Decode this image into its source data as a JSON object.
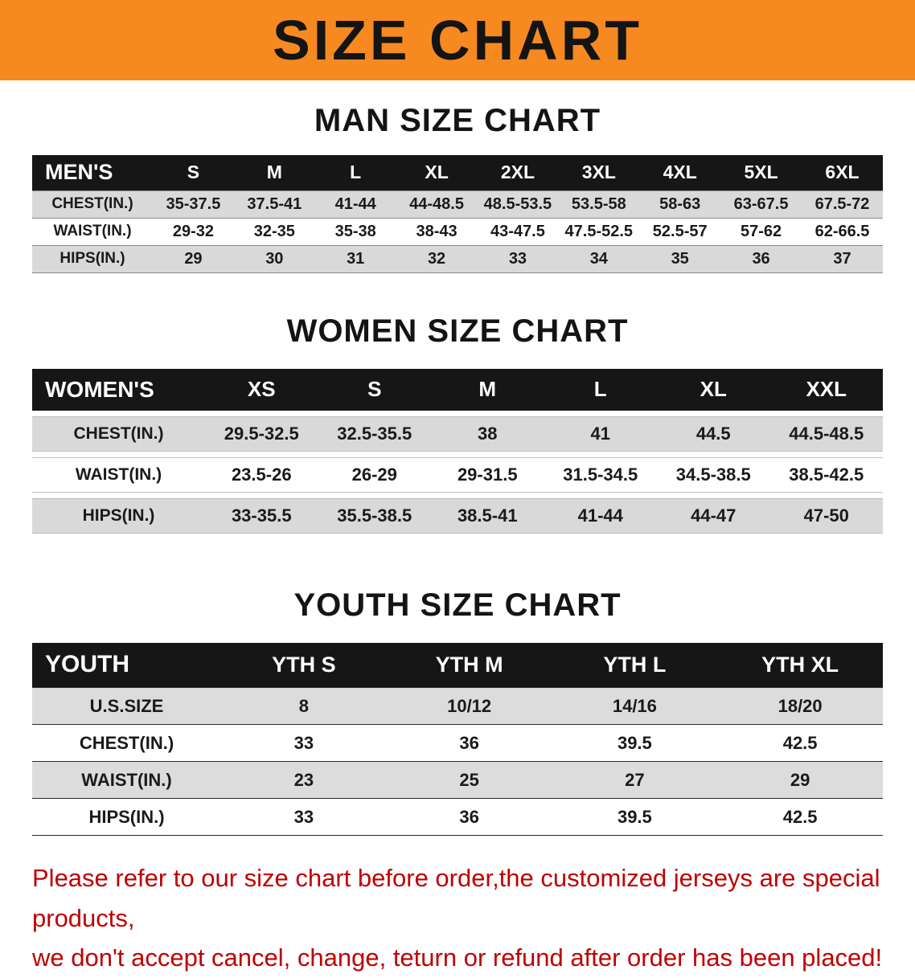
{
  "banner": {
    "title": "SIZE CHART",
    "bg_color": "#F6891F"
  },
  "sections": [
    {
      "heading": "MAN SIZE CHART",
      "table": {
        "header": [
          "MEN'S",
          "S",
          "M",
          "L",
          "XL",
          "2XL",
          "3XL",
          "4XL",
          "5XL",
          "6XL"
        ],
        "rows": [
          [
            "CHEST(IN.)",
            "35-37.5",
            "37.5-41",
            "41-44",
            "44-48.5",
            "48.5-53.5",
            "53.5-58",
            "58-63",
            "63-67.5",
            "67.5-72"
          ],
          [
            "WAIST(IN.)",
            "29-32",
            "32-35",
            "35-38",
            "38-43",
            "43-47.5",
            "47.5-52.5",
            "52.5-57",
            "57-62",
            "62-66.5"
          ],
          [
            "HIPS(IN.)",
            "29",
            "30",
            "31",
            "32",
            "33",
            "34",
            "35",
            "36",
            "37"
          ]
        ]
      }
    },
    {
      "heading": "WOMEN SIZE CHART",
      "table": {
        "header": [
          "WOMEN'S",
          "XS",
          "S",
          "M",
          "L",
          "XL",
          "XXL"
        ],
        "rows": [
          [
            "CHEST(IN.)",
            "29.5-32.5",
            "32.5-35.5",
            "38",
            "41",
            "44.5",
            "44.5-48.5"
          ],
          [
            "WAIST(IN.)",
            "23.5-26",
            "26-29",
            "29-31.5",
            "31.5-34.5",
            "34.5-38.5",
            "38.5-42.5"
          ],
          [
            "HIPS(IN.)",
            "33-35.5",
            "35.5-38.5",
            "38.5-41",
            "41-44",
            "44-47",
            "47-50"
          ]
        ]
      }
    },
    {
      "heading": "YOUTH SIZE CHART",
      "table": {
        "header": [
          "YOUTH",
          "YTH S",
          "YTH M",
          "YTH L",
          "YTH XL"
        ],
        "rows": [
          [
            "U.S.SIZE",
            "8",
            "10/12",
            "14/16",
            "18/20"
          ],
          [
            "CHEST(IN.)",
            "33",
            "36",
            "39.5",
            "42.5"
          ],
          [
            "WAIST(IN.)",
            "23",
            "25",
            "27",
            "29"
          ],
          [
            "HIPS(IN.)",
            "33",
            "36",
            "39.5",
            "42.5"
          ]
        ]
      }
    }
  ],
  "footer": {
    "line1": "Please refer to our size chart before order,the customized jerseys are special products,",
    "line2": "we don't accept cancel, change, teturn or refund after order has been placed!",
    "text_color": "#BF0000"
  }
}
